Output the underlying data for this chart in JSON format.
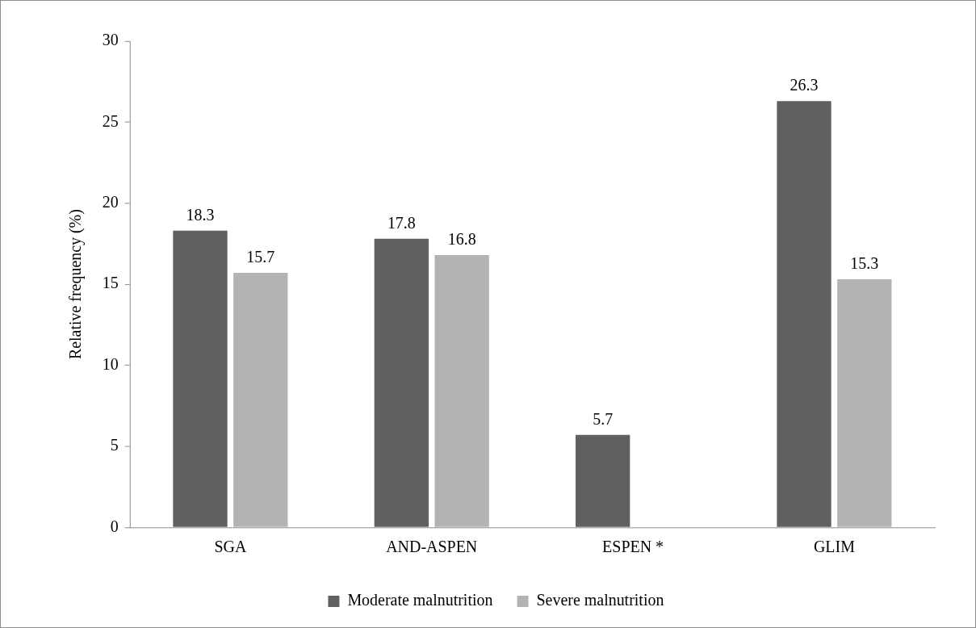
{
  "chart_data": {
    "type": "bar",
    "ylabel": "Relative frequency (%)",
    "categories": [
      "SGA",
      "AND-ASPEN",
      "ESPEN *",
      "GLIM"
    ],
    "series": [
      {
        "name": "Moderate malnutrition",
        "color": "#606060",
        "values": [
          18.3,
          17.8,
          5.7,
          26.3
        ]
      },
      {
        "name": "Severe malnutrition",
        "color": "#b3b3b3",
        "values": [
          15.7,
          16.8,
          null,
          15.3
        ]
      }
    ],
    "ylim": [
      0,
      30
    ],
    "yticks": [
      0,
      5,
      10,
      15,
      20,
      25,
      30
    ],
    "data_labels": true,
    "legend": "bottom"
  }
}
